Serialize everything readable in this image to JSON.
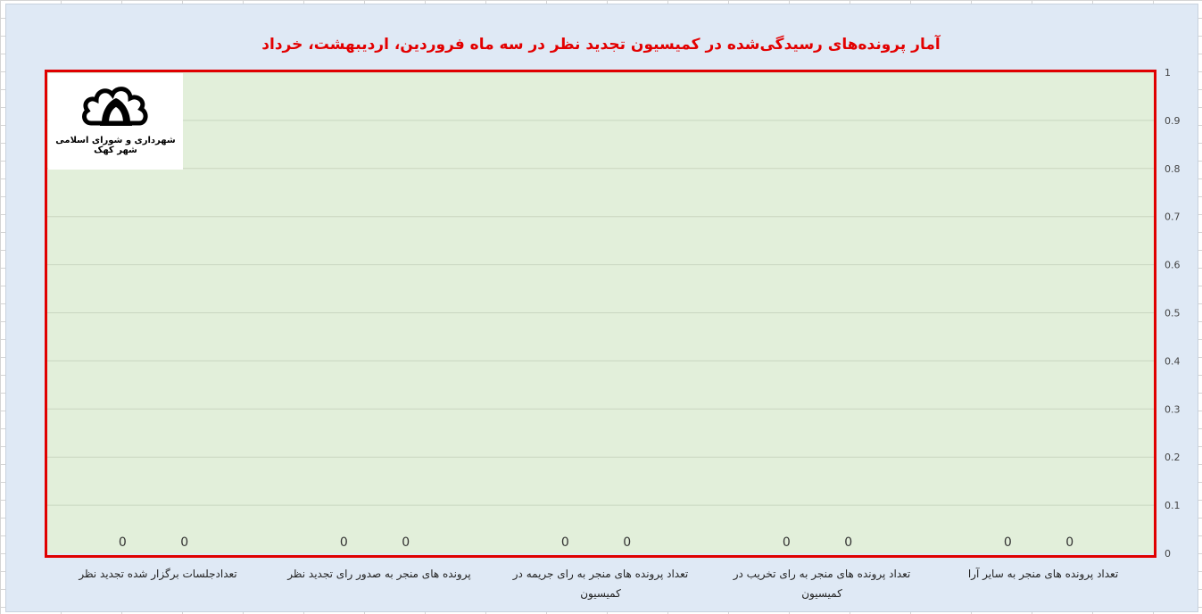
{
  "chart_data": {
    "type": "bar",
    "title": "آمار پرونده‌های رسیدگی‌شده در کمیسیون تجدید نظر در سه ماه فروردین، اردیبهشت، خرداد",
    "categories": [
      "تعداد پرونده های منجر به سایر آرا",
      "تعداد پرونده های منجر به رای تخریب در کمیسیون",
      "تعداد پرونده های منجر به رای جریمه در کمیسیون",
      "پرونده های منجر به صدور رای تجدید نظر",
      "تعدادجلسات برگزار شده تجدید نظر"
    ],
    "series": [
      {
        "values": [
          0,
          0,
          0,
          0,
          0
        ]
      },
      {
        "values": [
          0,
          0,
          0,
          0,
          0
        ]
      }
    ],
    "data_labels": [
      "0",
      "0",
      "0",
      "0",
      "0",
      "0",
      "0",
      "0",
      "0",
      "0"
    ],
    "y_ticks": [
      "0",
      "0.1",
      "0.2",
      "0.3",
      "0.4",
      "0.5",
      "0.6",
      "0.7",
      "0.8",
      "0.9",
      "1"
    ],
    "ylim": [
      0,
      1
    ],
    "y_axis_side": "right",
    "grid": true,
    "colors": {
      "plot_bg": "#e2efda",
      "chart_bg": "#dfe9f5",
      "border": "#e00000",
      "title": "#e30000"
    }
  },
  "logo": {
    "caption": "شهرداری و شورای اسلامی شهر کهک"
  }
}
